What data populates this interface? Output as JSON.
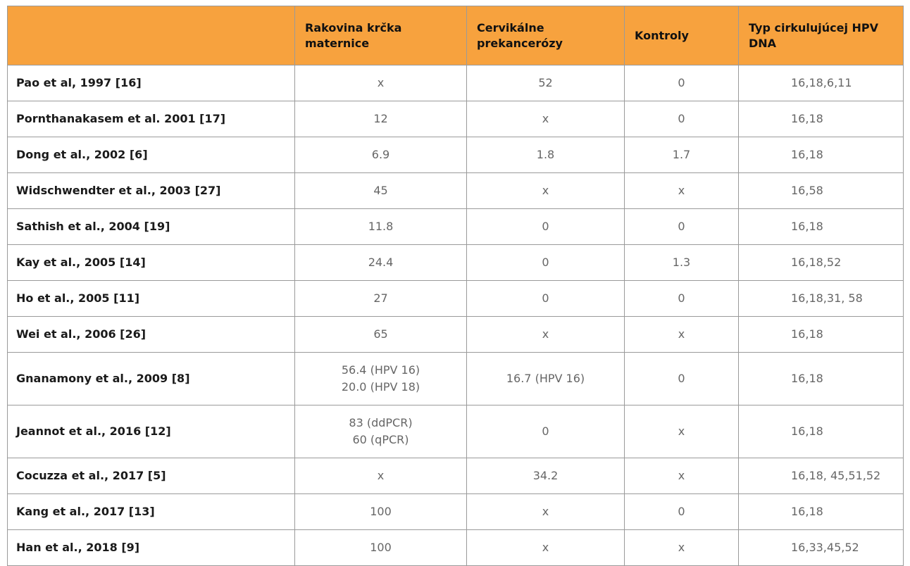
{
  "table": {
    "header": [
      "Rakovina krčka maternice",
      "Cervikálne prekancerózy",
      "Kontroly",
      "Typ cirkulujúcej HPV DNA"
    ],
    "rows": [
      [
        "Pao et al, 1997  [16]",
        "x",
        "52",
        "0",
        "16,18,6,11"
      ],
      [
        "Pornthanakasem et al. 2001 [17]",
        "12",
        "x",
        "0",
        "16,18"
      ],
      [
        "Dong et al., 2002 [6]",
        "6.9",
        "1.8",
        "1.7",
        "16,18"
      ],
      [
        "Widschwendter et al., 2003 [27]",
        "45",
        "x",
        "x",
        "16,58"
      ],
      [
        "Sathish et al., 2004 [19]",
        "11.8",
        "0",
        "0",
        "16,18"
      ],
      [
        "Kay et al., 2005 [14]",
        "24.4",
        "0",
        "1.3",
        "16,18,52"
      ],
      [
        "Ho et al., 2005 [11]",
        "27",
        "0",
        "0",
        "16,18,31, 58"
      ],
      [
        "Wei et al., 2006 [26]",
        "65",
        "x",
        "x",
        "16,18"
      ],
      [
        "Gnanamony et al., 2009 [8]",
        [
          "56.4 (HPV 16)",
          "20.0 (HPV 18)"
        ],
        "16.7 (HPV 16)",
        "0",
        "16,18"
      ],
      [
        "Jeannot et al., 2016 [12]",
        [
          "83 (ddPCR)",
          "60 (qPCR)"
        ],
        "0",
        "x",
        "16,18"
      ],
      [
        "Cocuzza et al., 2017 [5]",
        "x",
        "34.2",
        "x",
        "16,18, 45,51,52"
      ],
      [
        "Kang et al., 2017 [13]",
        "100",
        "x",
        "0",
        "16,18"
      ],
      [
        "Han et al., 2018 [9]",
        "100",
        "x",
        "x",
        "16,33,45,52"
      ]
    ]
  }
}
